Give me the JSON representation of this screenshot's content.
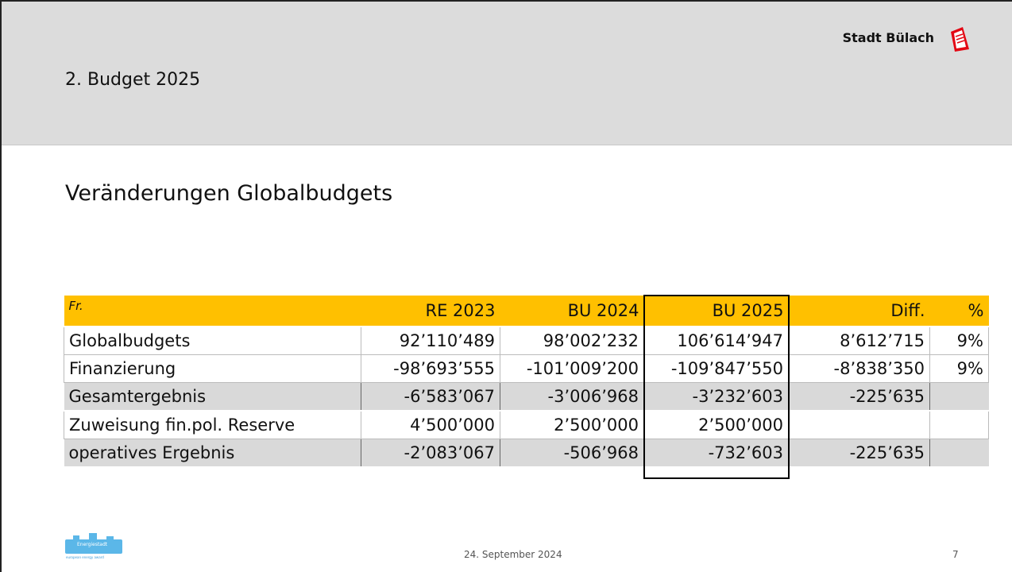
{
  "header": {
    "org": "Stadt Bülach",
    "title": "2. Budget 2025"
  },
  "subtitle": "Veränderungen Globalbudgets",
  "table": {
    "columns": [
      "Fr.",
      "RE 2023",
      "BU 2024",
      "BU 2025",
      "Diff.",
      "%"
    ],
    "rows": [
      [
        "Globalbudgets",
        "92’110’489",
        "98’002’232",
        "106’614’947",
        "8’612’715",
        "9%"
      ],
      [
        "Finanzierung",
        "-98’693’555",
        "-101’009’200",
        "-109’847’550",
        "-8’838’350",
        "9%"
      ],
      [
        "Gesamtergebnis",
        "-6’583’067",
        "-3’006’968",
        "-3’232’603",
        "-225’635",
        null
      ],
      [
        "Zuweisung fin.pol. Reserve",
        "4’500’000",
        "2’500’000",
        "2’500’000",
        null,
        null
      ],
      [
        "operatives Ergebnis",
        "-2’083’067",
        "-506’968",
        "-732’603",
        "-225’635",
        null
      ]
    ]
  },
  "footer": {
    "logo": "Energiestadt",
    "logo_sub": "european energy award",
    "date": "24. September 2024",
    "page": "7"
  }
}
